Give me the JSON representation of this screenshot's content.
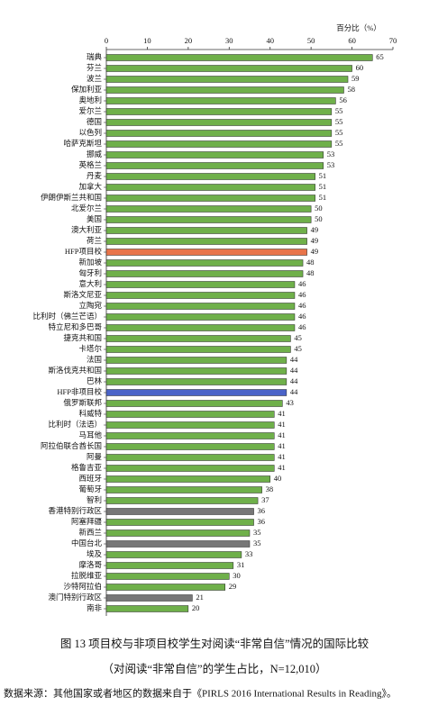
{
  "chart_data": {
    "type": "hbar",
    "axis_label": "百分比（%）",
    "caption": "图 13  项目校与非项目校学生对阅读“非常自信”情况的国际比较",
    "subcaption": "（对阅读“非常自信”的学生占比，N=12,010）",
    "source": "数据来源：其他国家或者地区的数据来自于《PIRLS 2016 International Results in Reading》。",
    "categories": [
      "瑞典",
      "芬兰",
      "波兰",
      "保加利亚",
      "奥地利",
      "爱尔兰",
      "德国",
      "以色列",
      "哈萨克斯坦",
      "挪威",
      "英格兰",
      "丹麦",
      "加拿大",
      "伊朗伊斯兰共和国",
      "北爱尔兰",
      "美国",
      "澳大利亚",
      "荷兰",
      "HFP项目校",
      "新加坡",
      "匈牙利",
      "意大利",
      "斯洛文尼亚",
      "立陶宛",
      "比利时（佛兰芒语）",
      "特立尼和多巴哥",
      "捷克共和国",
      "卡塔尔",
      "法国",
      "斯洛伐克共和国",
      "巴林",
      "HFP非项目校",
      "俄罗斯联邦",
      "科威特",
      "比利时（法语）",
      "马耳他",
      "阿拉伯联合酋长国",
      "阿曼",
      "格鲁吉亚",
      "西班牙",
      "葡萄牙",
      "智利",
      "香港特别行政区",
      "阿塞拜疆",
      "新西兰",
      "中国台北",
      "埃及",
      "摩洛哥",
      "拉脱维亚",
      "沙特阿拉伯",
      "澳门特别行政区",
      "南非"
    ],
    "values": [
      65,
      60,
      59,
      58,
      56,
      55,
      55,
      55,
      55,
      53,
      53,
      51,
      51,
      51,
      50,
      50,
      49,
      49,
      49,
      48,
      48,
      46,
      46,
      46,
      46,
      46,
      45,
      45,
      44,
      44,
      44,
      44,
      43,
      41,
      41,
      41,
      41,
      41,
      41,
      40,
      38,
      37,
      36,
      36,
      35,
      35,
      33,
      31,
      30,
      29,
      21,
      20
    ],
    "colors": [
      "#6fb04a",
      "#6fb04a",
      "#6fb04a",
      "#6fb04a",
      "#6fb04a",
      "#6fb04a",
      "#6fb04a",
      "#6fb04a",
      "#6fb04a",
      "#6fb04a",
      "#6fb04a",
      "#6fb04a",
      "#6fb04a",
      "#6fb04a",
      "#6fb04a",
      "#6fb04a",
      "#6fb04a",
      "#6fb04a",
      "#e8744a",
      "#6fb04a",
      "#6fb04a",
      "#6fb04a",
      "#6fb04a",
      "#6fb04a",
      "#6fb04a",
      "#6fb04a",
      "#6fb04a",
      "#6fb04a",
      "#6fb04a",
      "#6fb04a",
      "#6fb04a",
      "#4a63c8",
      "#6fb04a",
      "#6fb04a",
      "#6fb04a",
      "#6fb04a",
      "#6fb04a",
      "#6fb04a",
      "#6fb04a",
      "#6fb04a",
      "#6fb04a",
      "#6fb04a",
      "#777777",
      "#6fb04a",
      "#6fb04a",
      "#777777",
      "#6fb04a",
      "#6fb04a",
      "#6fb04a",
      "#6fb04a",
      "#777777",
      "#6fb04a"
    ],
    "xlim": [
      0,
      70
    ],
    "xticks": [
      0,
      10,
      20,
      30,
      40,
      50,
      60,
      70
    ]
  }
}
